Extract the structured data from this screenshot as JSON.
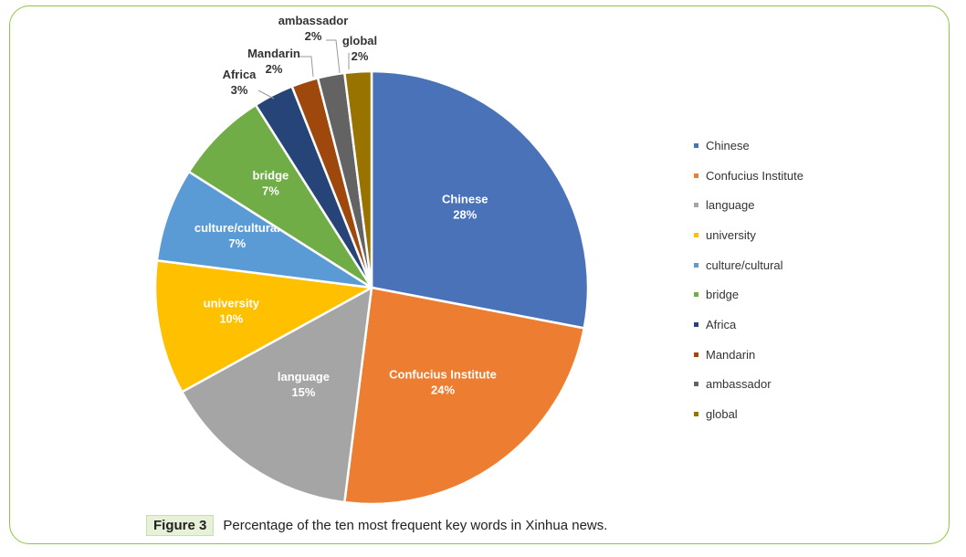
{
  "caption": {
    "figure_label": "Figure 3",
    "text": "Percentage of the ten most frequent key words in Xinhua news."
  },
  "chart_data": {
    "type": "pie",
    "categories": [
      "Chinese",
      "Confucius Institute",
      "language",
      "university",
      "culture/cultural",
      "bridge",
      "Africa",
      "Mandarin",
      "ambassador",
      "global"
    ],
    "values": [
      28,
      24,
      15,
      10,
      7,
      7,
      3,
      2,
      2,
      2
    ],
    "data_labels": [
      "28%",
      "24%",
      "15%",
      "10%",
      "7%",
      "7%",
      "3%",
      "2%",
      "2%",
      "2%"
    ],
    "colors": [
      "#4a72b8",
      "#ed7d31",
      "#a5a5a5",
      "#ffc000",
      "#5b9bd5",
      "#70ad47",
      "#264478",
      "#9e480e",
      "#636363",
      "#997300"
    ],
    "legend_position": "right",
    "start_angle": "top, clockwise"
  }
}
